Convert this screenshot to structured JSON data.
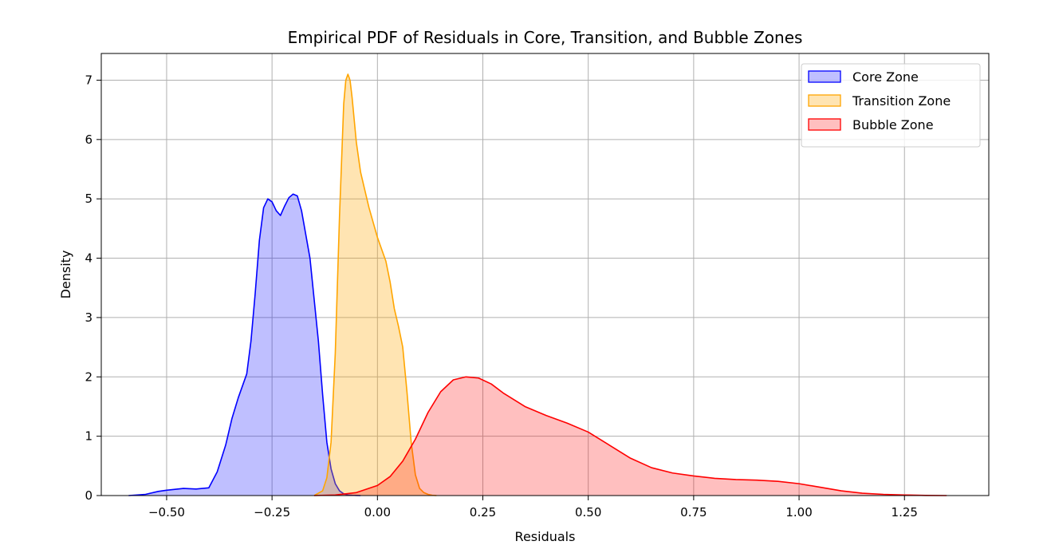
{
  "chart_data": {
    "type": "area",
    "title": "Empirical PDF of Residuals in Core, Transition, and Bubble Zones",
    "xlabel": "Residuals",
    "ylabel": "Density",
    "xlim": [
      -0.655,
      1.45
    ],
    "ylim": [
      0,
      7.45
    ],
    "x_ticks": [
      -0.5,
      -0.25,
      0.0,
      0.25,
      0.5,
      0.75,
      1.0,
      1.25
    ],
    "x_tick_labels": [
      "−0.50",
      "−0.25",
      "0.00",
      "0.25",
      "0.50",
      "0.75",
      "1.00",
      "1.25"
    ],
    "y_ticks": [
      0,
      1,
      2,
      3,
      4,
      5,
      6,
      7
    ],
    "y_tick_labels": [
      "0",
      "1",
      "2",
      "3",
      "4",
      "5",
      "6",
      "7"
    ],
    "grid": true,
    "legend_position": "top-right",
    "series": [
      {
        "name": "Core Zone",
        "color": "#0000ff",
        "fill_opacity": 0.25,
        "x": [
          -0.59,
          -0.55,
          -0.52,
          -0.5,
          -0.46,
          -0.43,
          -0.4,
          -0.38,
          -0.36,
          -0.345,
          -0.33,
          -0.31,
          -0.3,
          -0.29,
          -0.28,
          -0.27,
          -0.26,
          -0.25,
          -0.24,
          -0.23,
          -0.22,
          -0.21,
          -0.2,
          -0.19,
          -0.18,
          -0.17,
          -0.16,
          -0.15,
          -0.14,
          -0.13,
          -0.12,
          -0.11,
          -0.1,
          -0.09,
          -0.08,
          -0.07,
          -0.06,
          -0.05,
          -0.04
        ],
        "y": [
          0.0,
          0.02,
          0.07,
          0.09,
          0.12,
          0.11,
          0.13,
          0.4,
          0.85,
          1.3,
          1.65,
          2.05,
          2.6,
          3.4,
          4.3,
          4.85,
          5.0,
          4.95,
          4.8,
          4.72,
          4.88,
          5.02,
          5.08,
          5.05,
          4.8,
          4.4,
          4.0,
          3.3,
          2.6,
          1.7,
          0.9,
          0.45,
          0.2,
          0.08,
          0.03,
          0.01,
          0.005,
          0.002,
          0.0
        ]
      },
      {
        "name": "Transition Zone",
        "color": "#ffa500",
        "fill_opacity": 0.3,
        "x": [
          -0.15,
          -0.13,
          -0.12,
          -0.11,
          -0.1,
          -0.09,
          -0.08,
          -0.075,
          -0.07,
          -0.065,
          -0.06,
          -0.05,
          -0.04,
          -0.03,
          -0.02,
          -0.01,
          0.0,
          0.01,
          0.02,
          0.03,
          0.04,
          0.05,
          0.06,
          0.07,
          0.08,
          0.09,
          0.1,
          0.11,
          0.12,
          0.13,
          0.14
        ],
        "y": [
          0.0,
          0.08,
          0.3,
          0.9,
          2.4,
          4.7,
          6.6,
          7.0,
          7.1,
          7.0,
          6.7,
          5.95,
          5.45,
          5.15,
          4.85,
          4.6,
          4.35,
          4.15,
          3.95,
          3.6,
          3.15,
          2.85,
          2.5,
          1.75,
          0.9,
          0.35,
          0.12,
          0.05,
          0.02,
          0.005,
          0.0
        ]
      },
      {
        "name": "Bubble Zone",
        "color": "#ff0000",
        "fill_opacity": 0.25,
        "x": [
          -0.15,
          -0.1,
          -0.05,
          0.0,
          0.03,
          0.06,
          0.09,
          0.12,
          0.15,
          0.18,
          0.21,
          0.24,
          0.27,
          0.3,
          0.35,
          0.4,
          0.45,
          0.5,
          0.55,
          0.6,
          0.65,
          0.7,
          0.75,
          0.8,
          0.85,
          0.9,
          0.95,
          1.0,
          1.05,
          1.1,
          1.15,
          1.2,
          1.25,
          1.3,
          1.35
        ],
        "y": [
          0.0,
          0.01,
          0.05,
          0.17,
          0.32,
          0.58,
          0.95,
          1.4,
          1.75,
          1.95,
          2.0,
          1.98,
          1.88,
          1.72,
          1.5,
          1.35,
          1.22,
          1.07,
          0.85,
          0.63,
          0.47,
          0.38,
          0.33,
          0.29,
          0.27,
          0.26,
          0.24,
          0.2,
          0.14,
          0.08,
          0.04,
          0.02,
          0.01,
          0.003,
          0.0
        ]
      }
    ]
  }
}
